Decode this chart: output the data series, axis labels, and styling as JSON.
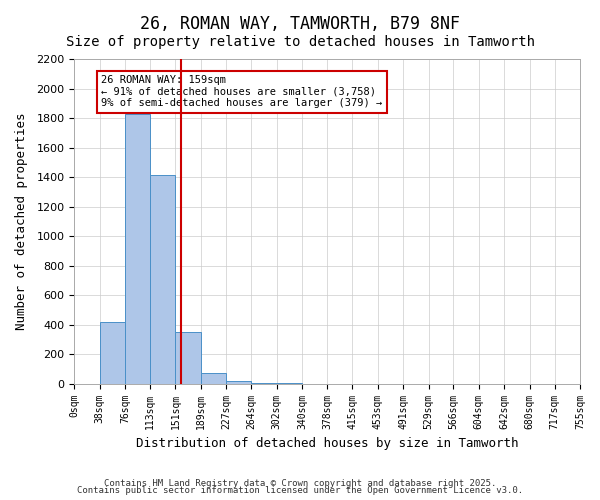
{
  "title": "26, ROMAN WAY, TAMWORTH, B79 8NF",
  "subtitle": "Size of property relative to detached houses in Tamworth",
  "xlabel": "Distribution of detached houses by size in Tamworth",
  "ylabel": "Number of detached properties",
  "bin_edges": [
    0,
    38,
    76,
    113,
    151,
    189,
    227,
    264,
    302,
    340,
    378,
    415,
    453,
    491,
    529,
    566,
    604,
    642,
    680,
    717,
    755
  ],
  "bar_heights": [
    0,
    420,
    1830,
    1415,
    350,
    75,
    20,
    5,
    2,
    1,
    1,
    0,
    0,
    0,
    0,
    0,
    0,
    0,
    0,
    0
  ],
  "bar_color": "#aec6e8",
  "bar_edge_color": "#4a90c8",
  "vline_x": 159,
  "vline_color": "#cc0000",
  "annotation_text": "26 ROMAN WAY: 159sqm\n← 91% of detached houses are smaller (3,758)\n9% of semi-detached houses are larger (379) →",
  "annotation_box_color": "#ffffff",
  "annotation_box_edge": "#cc0000",
  "ylim": [
    0,
    2200
  ],
  "yticks": [
    0,
    200,
    400,
    600,
    800,
    1000,
    1200,
    1400,
    1600,
    1800,
    2000,
    2200
  ],
  "background_color": "#ffffff",
  "grid_color": "#cccccc",
  "footer_line1": "Contains HM Land Registry data © Crown copyright and database right 2025.",
  "footer_line2": "Contains public sector information licensed under the Open Government Licence v3.0.",
  "title_fontsize": 12,
  "subtitle_fontsize": 10,
  "tick_label_fontsize": 7,
  "axis_label_fontsize": 9
}
